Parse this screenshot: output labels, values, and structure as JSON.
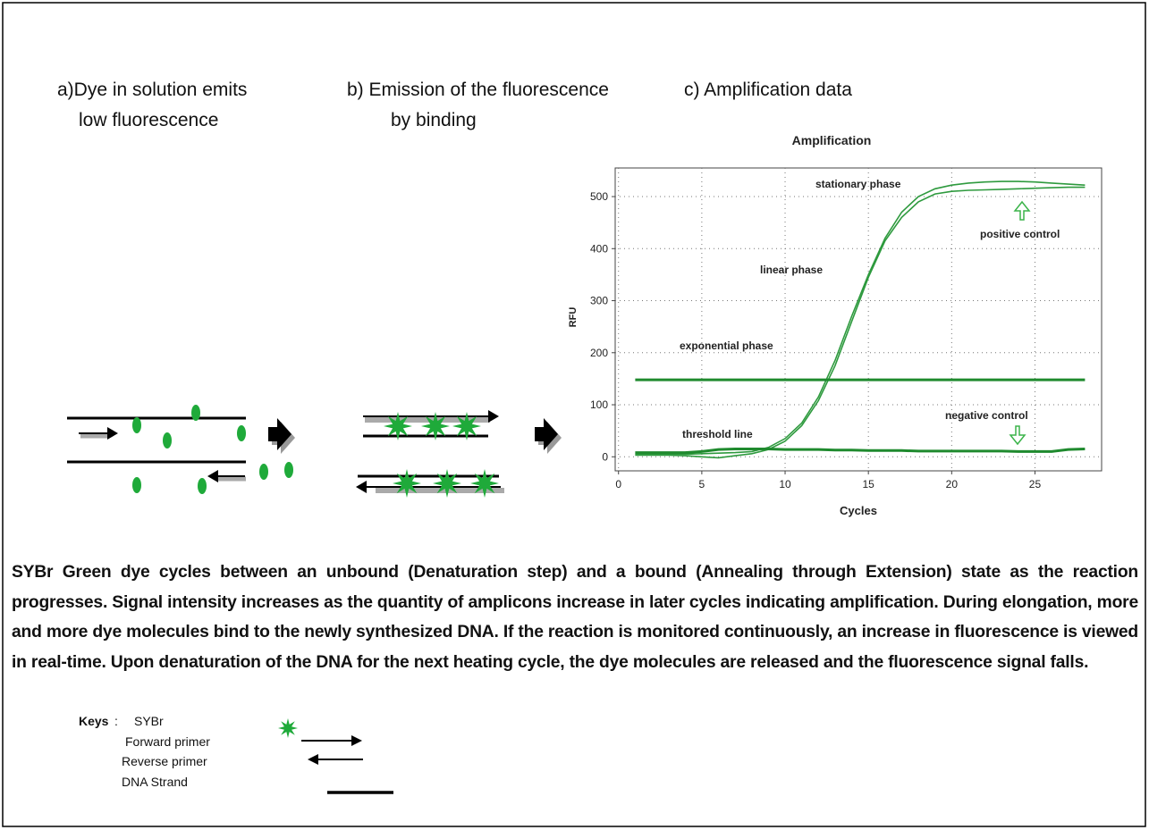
{
  "panels": [
    {
      "lines": [
        "a)Dye in solution emits",
        "low fluorescence"
      ]
    },
    {
      "lines": [
        "b) Emission of the fluorescence",
        "by binding"
      ]
    },
    {
      "lines": [
        "c)  Amplification data"
      ]
    }
  ],
  "chart_data": {
    "type": "line",
    "title": "Amplification",
    "x_label": "Cycles",
    "y_label": "RFU",
    "x": [
      1,
      2,
      3,
      4,
      5,
      6,
      7,
      8,
      9,
      10,
      11,
      12,
      13,
      14,
      15,
      16,
      17,
      18,
      19,
      20,
      21,
      22,
      23,
      24,
      25,
      26,
      27,
      28
    ],
    "series": [
      {
        "color": "#2e9a3e",
        "values": [
          5,
          5,
          5,
          5,
          6,
          7,
          8,
          10,
          18,
          35,
          65,
          115,
          185,
          270,
          350,
          420,
          470,
          500,
          515,
          522,
          526,
          528,
          529,
          529,
          528,
          526,
          524,
          522
        ]
      },
      {
        "color": "#2e9a3e",
        "values": [
          3,
          3,
          3,
          2,
          0,
          -2,
          2,
          6,
          14,
          30,
          60,
          108,
          175,
          260,
          345,
          415,
          460,
          490,
          505,
          510,
          512,
          513,
          514,
          515,
          516,
          517,
          518,
          518
        ]
      },
      {
        "color": "#1f8a2e",
        "values": [
          148,
          148,
          148,
          148,
          148,
          148,
          148,
          148,
          148,
          148,
          148,
          148,
          148,
          148,
          148,
          148,
          148,
          148,
          148,
          148,
          148,
          148,
          148,
          148,
          148,
          148,
          148,
          148
        ]
      },
      {
        "color": "#1f8a2e",
        "values": [
          8,
          8,
          8,
          8,
          10,
          14,
          15,
          15,
          15,
          14,
          14,
          14,
          13,
          13,
          12,
          12,
          12,
          11,
          11,
          11,
          11,
          11,
          11,
          10,
          10,
          10,
          14,
          15
        ]
      }
    ],
    "xlim": [
      -0.2,
      29
    ],
    "ylim": [
      -27,
      555
    ],
    "xticks": [
      0,
      5,
      10,
      15,
      20,
      25
    ],
    "yticks": [
      0,
      100,
      200,
      300,
      400,
      500
    ],
    "grid": true,
    "annotations": [
      "stationary phase",
      "positive control",
      "linear phase",
      "exponential phase",
      "threshold line",
      "negative control"
    ]
  },
  "caption": "SYBr Green dye cycles between an unbound (Denaturation step) and a bound (Annealing through Extension) state as the reaction progresses. Signal intensity increases as the quantity of amplicons increase in later cycles indicating amplification. During elongation, more and more dye molecules bind to the newly synthesized DNA. If the reaction is monitored continuously, an increase in fluorescence is viewed in real-time. Upon denaturation of the DNA for the next heating cycle, the dye molecules are released and the fluorescence signal falls.",
  "keys": {
    "title": "Keys",
    "separator": ":",
    "items": [
      "SYBr",
      "Forward primer",
      "Reverse primer",
      "DNA Strand"
    ]
  }
}
